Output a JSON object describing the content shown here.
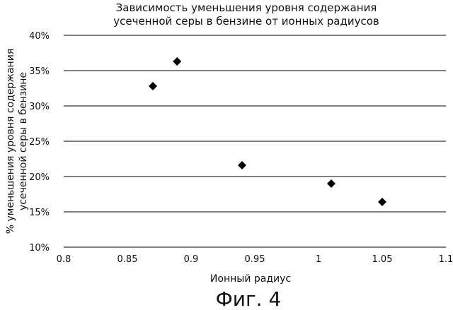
{
  "chart_data": {
    "type": "scatter",
    "title": [
      "Зависимость уменьшения уровня содержания",
      "усеченной серы в бензине от ионных радиусов"
    ],
    "xlabel": "Ионный радиус",
    "ylabel": [
      "% уменьшения уровня содержания",
      "усеченной серы в бензине"
    ],
    "xlim": [
      0.8,
      1.1
    ],
    "ylim": [
      10,
      40
    ],
    "x_ticks": [
      {
        "value": 0.8,
        "label": "0.8"
      },
      {
        "value": 0.85,
        "label": "0.85"
      },
      {
        "value": 0.9,
        "label": "0.9"
      },
      {
        "value": 0.95,
        "label": "0.95"
      },
      {
        "value": 1.0,
        "label": "1"
      },
      {
        "value": 1.05,
        "label": "1.05"
      },
      {
        "value": 1.1,
        "label": "1.1"
      }
    ],
    "y_ticks": [
      {
        "value": 10,
        "label": "10%"
      },
      {
        "value": 15,
        "label": "15%"
      },
      {
        "value": 20,
        "label": "20%"
      },
      {
        "value": 25,
        "label": "25%"
      },
      {
        "value": 30,
        "label": "30%"
      },
      {
        "value": 35,
        "label": "35%"
      },
      {
        "value": 40,
        "label": "40%"
      }
    ],
    "grid": {
      "horizontal": true,
      "vertical": false
    },
    "marker": "diamond",
    "marker_color": "#000000",
    "points": [
      {
        "x": 0.87,
        "y": 32.8
      },
      {
        "x": 0.889,
        "y": 36.3
      },
      {
        "x": 0.94,
        "y": 21.6
      },
      {
        "x": 1.01,
        "y": 19.0
      },
      {
        "x": 1.05,
        "y": 16.4
      }
    ]
  },
  "caption": "Фиг. 4"
}
